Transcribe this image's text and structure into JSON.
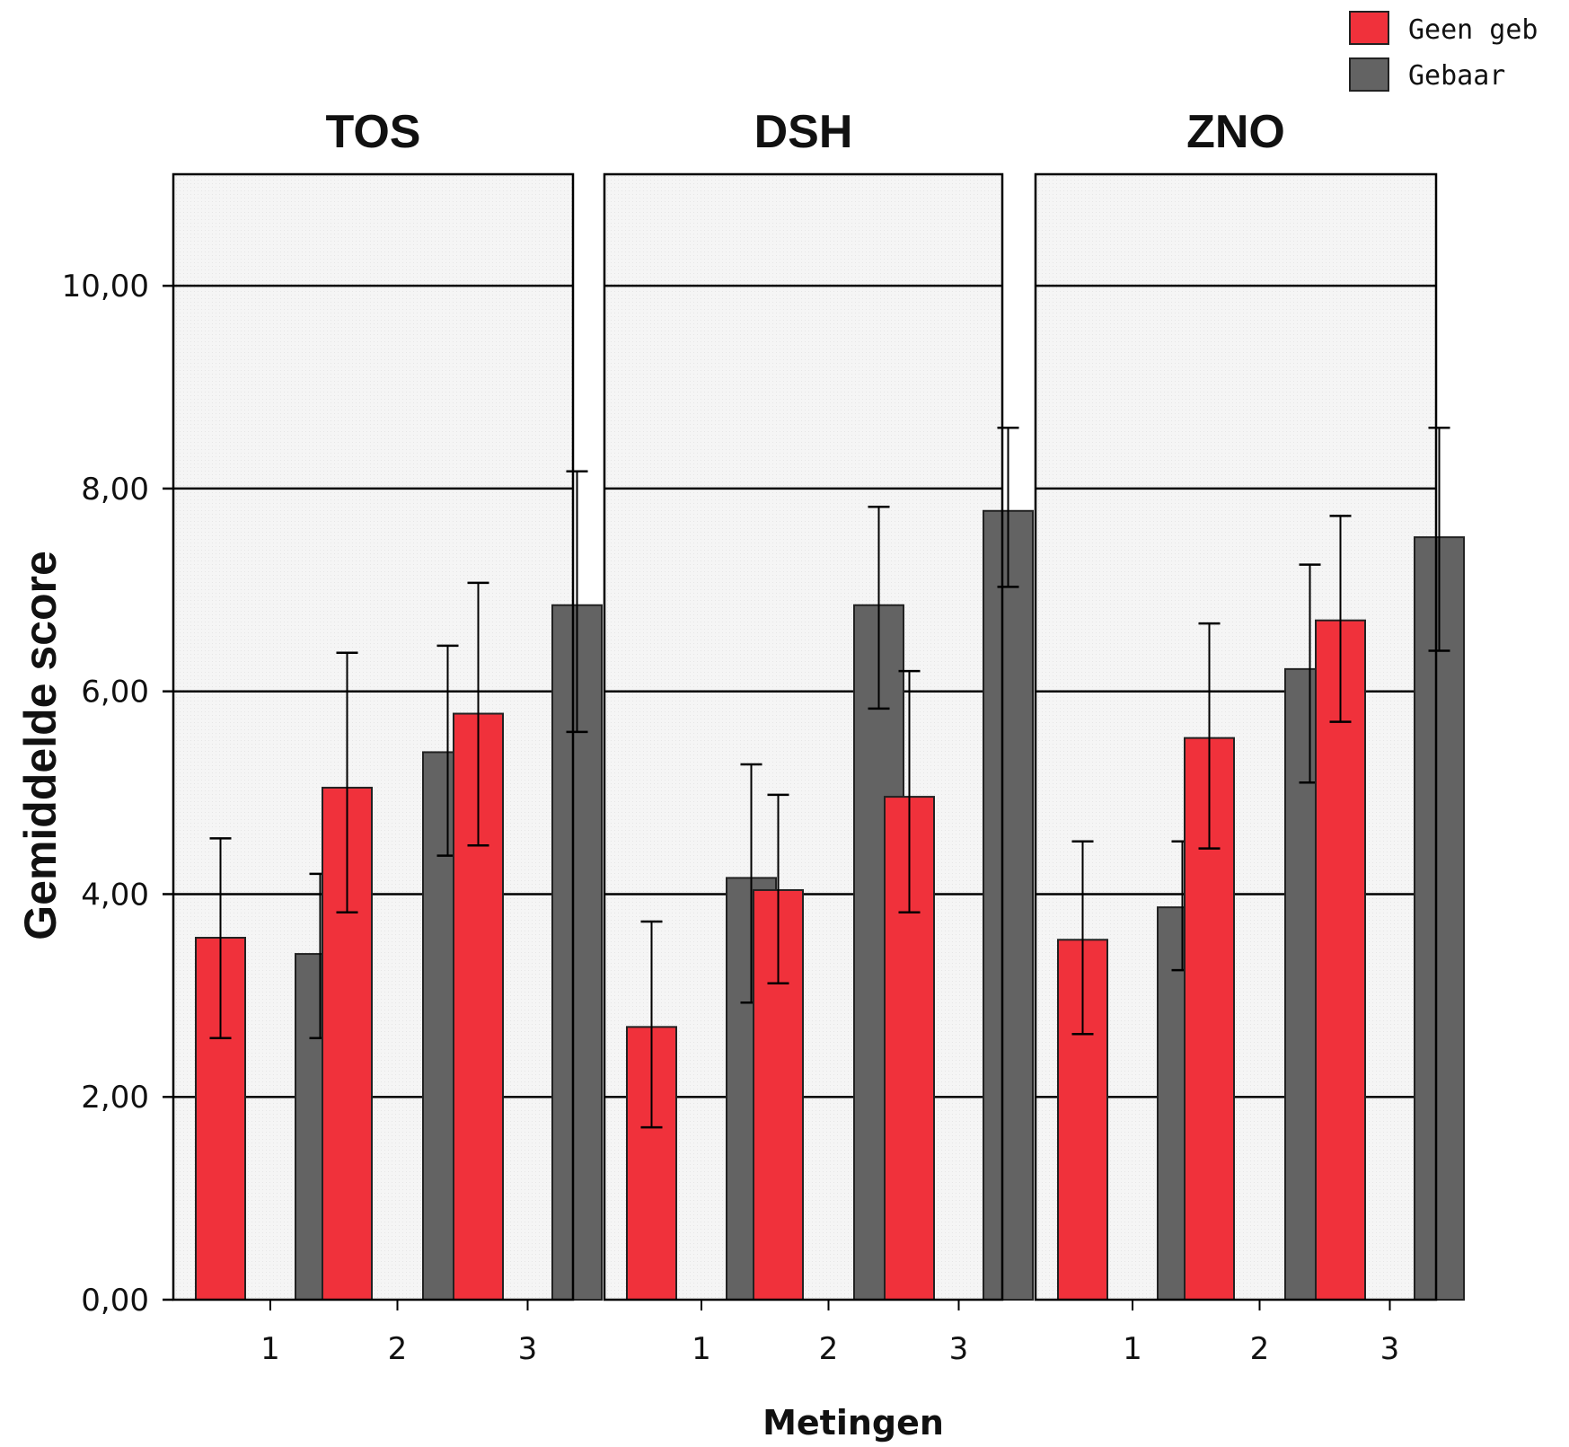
{
  "chart_data": {
    "type": "bar",
    "ylabel": "Gemiddelde score",
    "xlabel": "Metingen",
    "ylim": [
      0,
      11.1
    ],
    "yticks": [
      "0,00",
      "2,00",
      "4,00",
      "6,00",
      "8,00",
      "10,00"
    ],
    "ytick_values": [
      0,
      2,
      4,
      6,
      8,
      10
    ],
    "grid": true,
    "legend_position": "top-right",
    "categories": [
      "1",
      "2",
      "3"
    ],
    "series_meta": [
      {
        "name": "Geen geb",
        "color": "#f0313b"
      },
      {
        "name": "Gebaar",
        "color": "#636363"
      }
    ],
    "panels": [
      {
        "title": "TOS",
        "series": [
          {
            "name": "Geen geb",
            "values": [
              3.57,
              5.05,
              5.78
            ],
            "err_low": [
              2.58,
              3.82,
              4.48
            ],
            "err_high": [
              4.55,
              6.38,
              7.07
            ]
          },
          {
            "name": "Gebaar",
            "values": [
              3.41,
              5.4,
              6.85
            ],
            "err_low": [
              2.58,
              4.38,
              5.6
            ],
            "err_high": [
              4.2,
              6.45,
              8.17
            ]
          }
        ]
      },
      {
        "title": "DSH",
        "series": [
          {
            "name": "Geen geb",
            "values": [
              2.69,
              4.04,
              4.96
            ],
            "err_low": [
              1.7,
              3.12,
              3.82
            ],
            "err_high": [
              3.73,
              4.98,
              6.2
            ]
          },
          {
            "name": "Gebaar",
            "values": [
              4.16,
              6.85,
              7.78
            ],
            "err_low": [
              2.93,
              5.83,
              7.03
            ],
            "err_high": [
              5.28,
              7.82,
              8.6
            ]
          }
        ]
      },
      {
        "title": "ZNO",
        "series": [
          {
            "name": "Geen geb",
            "values": [
              3.55,
              5.54,
              6.7
            ],
            "err_low": [
              2.62,
              4.45,
              5.7
            ],
            "err_high": [
              4.52,
              6.67,
              7.73
            ]
          },
          {
            "name": "Gebaar",
            "values": [
              3.87,
              6.22,
              7.52
            ],
            "err_low": [
              3.25,
              5.1,
              6.4
            ],
            "err_high": [
              4.52,
              7.25,
              8.6
            ]
          }
        ]
      }
    ]
  }
}
